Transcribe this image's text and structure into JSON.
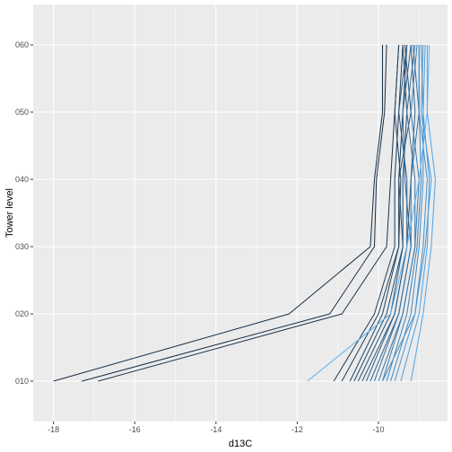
{
  "chart_data": {
    "type": "line",
    "xlabel": "d13C",
    "ylabel": "Tower level",
    "xlim": [
      -18.5,
      -8.3
    ],
    "x_ticks": [
      -18,
      -16,
      -14,
      -12,
      -10
    ],
    "x_tick_labels": [
      "-18",
      "-16",
      "-14",
      "-12",
      "-10"
    ],
    "y_categories": [
      "010",
      "020",
      "030",
      "040",
      "050",
      "060"
    ],
    "grid": true,
    "legend": "none",
    "colors": {
      "panel": "#ebebeb",
      "grid_major": "#ffffff",
      "dark": "#132b43",
      "light": "#56b1f7"
    },
    "series": [
      {
        "values": [
          -18.0,
          -12.2,
          -10.2,
          -10.1,
          -9.9,
          -9.9
        ],
        "shade": 0.0
      },
      {
        "values": [
          -17.3,
          -11.2,
          -10.1,
          -10.05,
          -9.85,
          -9.8
        ],
        "shade": 0.03
      },
      {
        "values": [
          -16.9,
          -10.9,
          -9.8,
          -9.7,
          -9.6,
          -9.5
        ],
        "shade": 0.06
      },
      {
        "values": [
          -11.1,
          -10.1,
          -9.6,
          -9.6,
          -9.5,
          -9.4
        ],
        "shade": 0.12
      },
      {
        "values": [
          -10.9,
          -10.0,
          -9.5,
          -9.5,
          -9.4,
          -9.3
        ],
        "shade": 0.15
      },
      {
        "values": [
          -10.7,
          -9.9,
          -9.5,
          -9.45,
          -9.6,
          -9.5
        ],
        "shade": 0.2
      },
      {
        "values": [
          -10.6,
          -9.8,
          -9.4,
          -9.4,
          -9.3,
          -9.4
        ],
        "shade": 0.25
      },
      {
        "values": [
          -10.5,
          -9.7,
          -9.4,
          -9.5,
          -9.2,
          -9.35
        ],
        "shade": 0.3
      },
      {
        "values": [
          -10.4,
          -9.6,
          -9.3,
          -9.3,
          -9.5,
          -9.3
        ],
        "shade": 0.35
      },
      {
        "values": [
          -10.3,
          -9.6,
          -9.3,
          -9.2,
          -9.1,
          -9.2
        ],
        "shade": 0.4
      },
      {
        "values": [
          -10.2,
          -9.5,
          -9.2,
          -9.35,
          -9.4,
          -9.2
        ],
        "shade": 0.45
      },
      {
        "values": [
          -10.1,
          -9.5,
          -9.2,
          -9.2,
          -9.0,
          -9.15
        ],
        "shade": 0.5
      },
      {
        "values": [
          -10.0,
          -9.4,
          -9.1,
          -9.1,
          -9.3,
          -9.1
        ],
        "shade": 0.55
      },
      {
        "values": [
          -9.9,
          -9.4,
          -9.1,
          -9.0,
          -9.2,
          -9.05
        ],
        "shade": 0.6
      },
      {
        "values": [
          -9.8,
          -9.3,
          -9.05,
          -8.95,
          -9.0,
          -9.0
        ],
        "shade": 0.65
      },
      {
        "values": [
          -9.7,
          -9.2,
          -9.0,
          -8.9,
          -8.9,
          -8.95
        ],
        "shade": 0.7
      },
      {
        "values": [
          -9.9,
          -9.1,
          -8.9,
          -8.8,
          -9.0,
          -9.0
        ],
        "shade": 0.75
      },
      {
        "values": [
          -9.6,
          -9.1,
          -8.85,
          -8.7,
          -8.95,
          -8.9
        ],
        "shade": 0.8
      },
      {
        "values": [
          -9.45,
          -9.0,
          -8.8,
          -8.75,
          -8.9,
          -8.85
        ],
        "shade": 0.85
      },
      {
        "values": [
          -9.2,
          -8.9,
          -8.7,
          -8.6,
          -8.8,
          -8.8
        ],
        "shade": 0.9
      },
      {
        "values": [
          -11.75,
          -9.7,
          -9.3,
          -9.0,
          -8.8,
          -8.75
        ],
        "shade": 1.0
      }
    ]
  }
}
